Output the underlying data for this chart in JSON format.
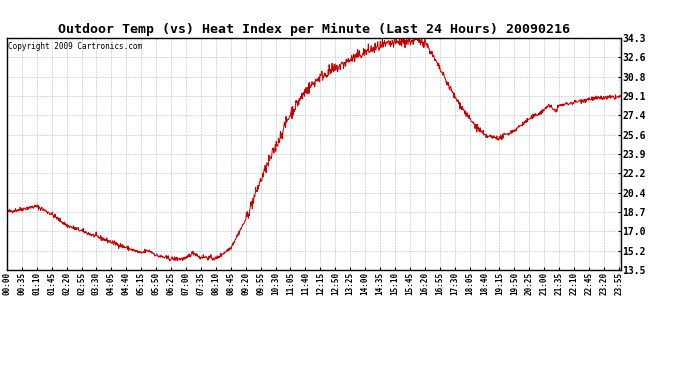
{
  "title": "Outdoor Temp (vs) Heat Index per Minute (Last 24 Hours) 20090216",
  "copyright": "Copyright 2009 Cartronics.com",
  "yticks": [
    13.5,
    15.2,
    17.0,
    18.7,
    20.4,
    22.2,
    23.9,
    25.6,
    27.4,
    29.1,
    30.8,
    32.6,
    34.3
  ],
  "ymin": 13.5,
  "ymax": 34.3,
  "line_color": "#cc0000",
  "bg_color": "#ffffff",
  "plot_bg_color": "#ffffff",
  "grid_color": "#aaaaaa",
  "x_labels": [
    "00:00",
    "00:35",
    "01:10",
    "01:45",
    "02:20",
    "02:55",
    "03:30",
    "04:05",
    "04:40",
    "05:15",
    "05:50",
    "06:25",
    "07:00",
    "07:35",
    "08:10",
    "08:45",
    "09:20",
    "09:55",
    "10:30",
    "11:05",
    "11:40",
    "12:15",
    "12:50",
    "13:25",
    "14:00",
    "14:35",
    "15:10",
    "15:45",
    "16:20",
    "16:55",
    "17:30",
    "18:05",
    "18:40",
    "19:15",
    "19:50",
    "20:25",
    "21:00",
    "21:35",
    "22:10",
    "22:45",
    "23:20",
    "23:55"
  ],
  "total_minutes": 1440,
  "figsize": [
    6.9,
    3.75
  ],
  "dpi": 100
}
